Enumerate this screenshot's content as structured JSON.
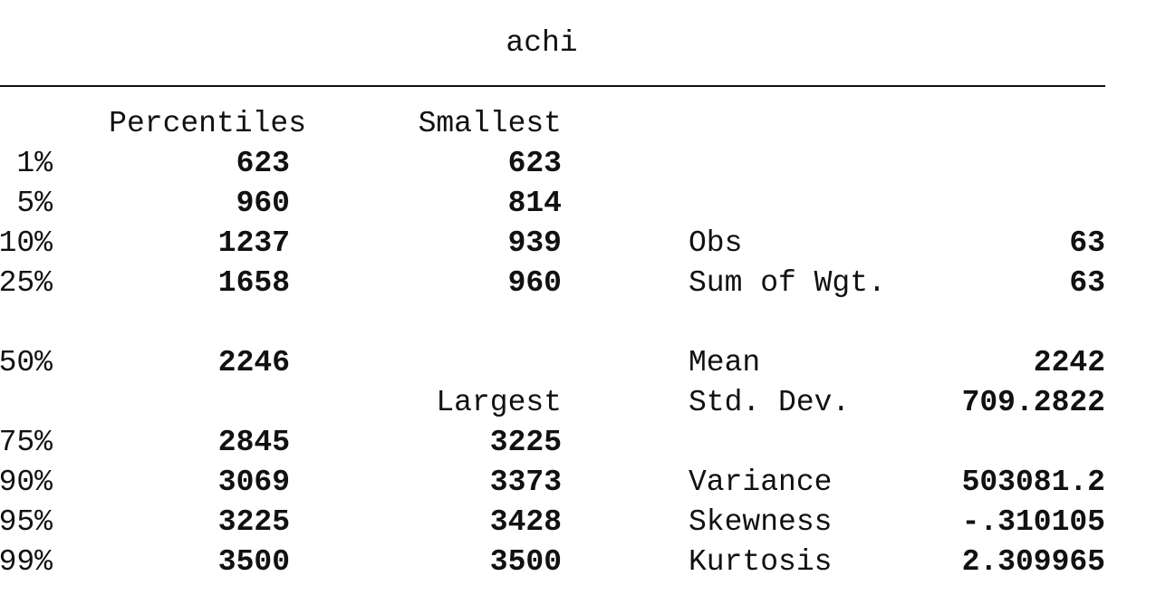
{
  "variable": "achi",
  "headers": {
    "percentiles": "Percentiles",
    "smallest": "Smallest",
    "largest": "Largest"
  },
  "rows": [
    {
      "pct": "1%",
      "value": "623",
      "extreme": "623"
    },
    {
      "pct": "5%",
      "value": "960",
      "extreme": "814"
    },
    {
      "pct": "10%",
      "value": "1237",
      "extreme": "939",
      "stat": "Obs",
      "stat_value": "63"
    },
    {
      "pct": "25%",
      "value": "1658",
      "extreme": "960",
      "stat": "Sum of Wgt.",
      "stat_value": "63"
    },
    {
      "pct": "50%",
      "value": "2246",
      "stat": "Mean",
      "stat_value": "2242"
    },
    {
      "stat": "Std. Dev.",
      "stat_value": "709.2822"
    },
    {
      "pct": "75%",
      "value": "2845",
      "extreme": "3225"
    },
    {
      "pct": "90%",
      "value": "3069",
      "extreme": "3373",
      "stat": "Variance",
      "stat_value": "503081.2"
    },
    {
      "pct": "95%",
      "value": "3225",
      "extreme": "3428",
      "stat": "Skewness",
      "stat_value": "-.310105"
    },
    {
      "pct": "99%",
      "value": "3500",
      "extreme": "3500",
      "stat": "Kurtosis",
      "stat_value": "2.309965"
    }
  ]
}
